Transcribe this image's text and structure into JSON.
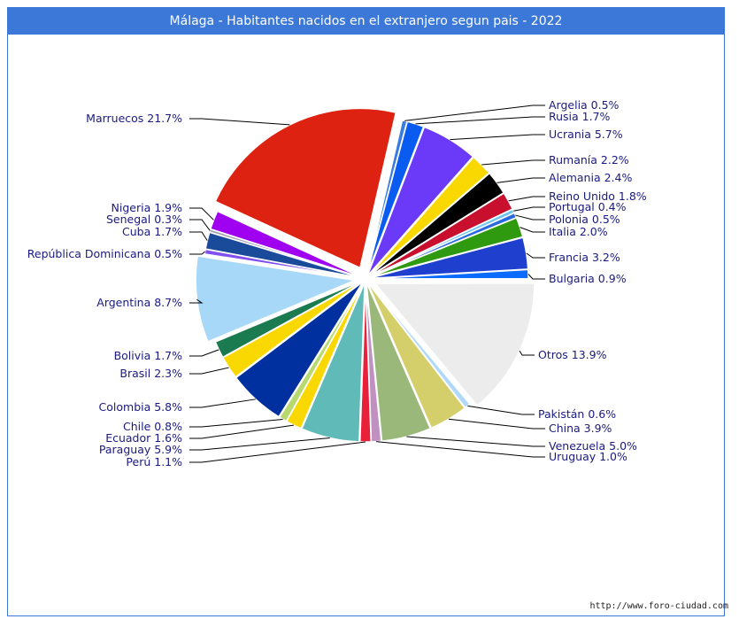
{
  "chart_data": {
    "type": "pie",
    "title": "Málaga - Habitantes nacidos en el extranjero segun pais - 2022",
    "slices": [
      {
        "label": "Argelia",
        "value": 0.5,
        "color": "#3a7be0"
      },
      {
        "label": "Rusia",
        "value": 1.7,
        "color": "#0a5cf0"
      },
      {
        "label": "Ucrania",
        "value": 5.7,
        "color": "#6a3af8"
      },
      {
        "label": "Rumanía",
        "value": 2.2,
        "color": "#f8d800"
      },
      {
        "label": "Alemania",
        "value": 2.4,
        "color": "#000000"
      },
      {
        "label": "Reino Unido",
        "value": 1.8,
        "color": "#c8102e"
      },
      {
        "label": "Portugal",
        "value": 0.4,
        "color": "#6ec6f0"
      },
      {
        "label": "Polonia",
        "value": 0.5,
        "color": "#2a6ae0"
      },
      {
        "label": "Italia",
        "value": 2.0,
        "color": "#2f9a10"
      },
      {
        "label": "Francia",
        "value": 3.2,
        "color": "#1f3fcf"
      },
      {
        "label": "Bulgaria",
        "value": 0.9,
        "color": "#0a6cff"
      },
      {
        "label": "Otros",
        "value": 13.9,
        "color": "#ececec"
      },
      {
        "label": "Pakistán",
        "value": 0.6,
        "color": "#b0d8f8"
      },
      {
        "label": "China",
        "value": 3.9,
        "color": "#d4cf6a"
      },
      {
        "label": "Venezuela",
        "value": 5.0,
        "color": "#9ab87a"
      },
      {
        "label": "Uruguay",
        "value": 1.0,
        "color": "#c090c0"
      },
      {
        "label": "Perú",
        "value": 1.1,
        "color": "#e8203a"
      },
      {
        "label": "Paraguay",
        "value": 5.9,
        "color": "#60bab8"
      },
      {
        "label": "Ecuador",
        "value": 1.6,
        "color": "#f8d800"
      },
      {
        "label": "Chile",
        "value": 0.8,
        "color": "#b8d870"
      },
      {
        "label": "Colombia",
        "value": 5.8,
        "color": "#0030a0"
      },
      {
        "label": "Brasil",
        "value": 2.3,
        "color": "#f8d800"
      },
      {
        "label": "Bolivia",
        "value": 1.7,
        "color": "#1a7a50"
      },
      {
        "label": "Argentina",
        "value": 8.7,
        "color": "#a8d8f8"
      },
      {
        "label": "República Dominicana",
        "value": 0.5,
        "color": "#8050f0"
      },
      {
        "label": "Cuba",
        "value": 1.7,
        "color": "#1a4a9a"
      },
      {
        "label": "Senegal",
        "value": 0.3,
        "color": "#a0a0b0"
      },
      {
        "label": "Nigeria",
        "value": 1.9,
        "color": "#a000f0"
      },
      {
        "label": "Marruecos",
        "value": 21.7,
        "color": "#dd2211"
      }
    ],
    "unit": "%"
  },
  "footer": "http://www.foro-ciudad.com",
  "colors": {
    "frame": "#3c78d8",
    "label_text": "#1a1a80"
  }
}
